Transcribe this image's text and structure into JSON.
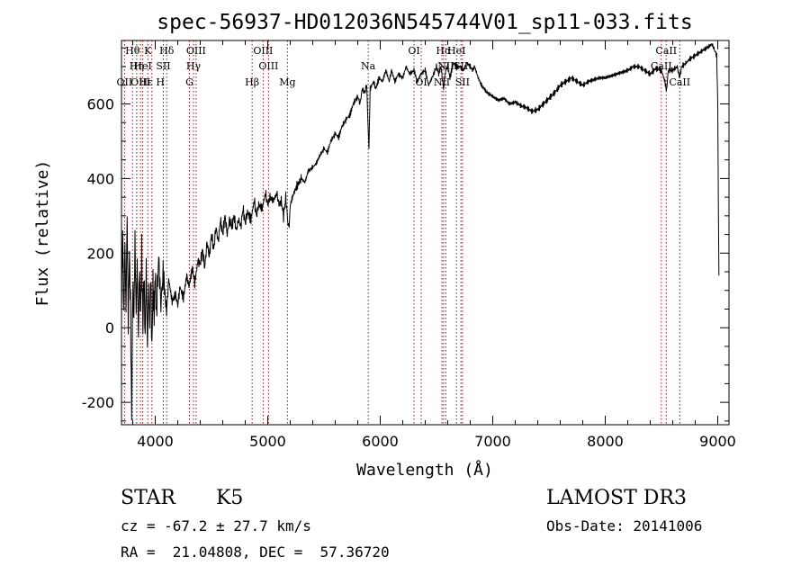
{
  "chart_data": {
    "type": "line",
    "title": "spec-56937-HD012036N545744V01_sp11-033.fits",
    "xlabel": "Wavelength (Å)",
    "ylabel": "Flux (relative)",
    "xlim": [
      3700,
      9100
    ],
    "ylim": [
      -260,
      770
    ],
    "xticks": [
      4000,
      5000,
      6000,
      7000,
      8000,
      9000
    ],
    "yticks": [
      -200,
      0,
      200,
      400,
      600
    ],
    "grid": false,
    "legend": "none",
    "series": [
      {
        "points": [
          [
            3700,
            40
          ],
          [
            3710,
            260
          ],
          [
            3720,
            20
          ],
          [
            3730,
            230
          ],
          [
            3740,
            40
          ],
          [
            3750,
            300
          ],
          [
            3760,
            10
          ],
          [
            3770,
            200
          ],
          [
            3780,
            60
          ],
          [
            3790,
            -240
          ],
          [
            3800,
            120
          ],
          [
            3810,
            20
          ],
          [
            3820,
            240
          ],
          [
            3830,
            40
          ],
          [
            3840,
            180
          ],
          [
            3850,
            -20
          ],
          [
            3860,
            160
          ],
          [
            3870,
            30
          ],
          [
            3880,
            210
          ],
          [
            3890,
            0
          ],
          [
            3900,
            150
          ],
          [
            3910,
            -30
          ],
          [
            3920,
            170
          ],
          [
            3930,
            -50
          ],
          [
            3940,
            110
          ],
          [
            3950,
            10
          ],
          [
            3960,
            150
          ],
          [
            3970,
            -60
          ],
          [
            3980,
            120
          ],
          [
            3990,
            30
          ],
          [
            4000,
            150
          ],
          [
            4010,
            40
          ],
          [
            4030,
            190
          ],
          [
            4050,
            60
          ],
          [
            4070,
            150
          ],
          [
            4100,
            40
          ],
          [
            4120,
            130
          ],
          [
            4150,
            70
          ],
          [
            4180,
            90
          ],
          [
            4200,
            60
          ],
          [
            4220,
            110
          ],
          [
            4250,
            80
          ],
          [
            4280,
            140
          ],
          [
            4300,
            110
          ],
          [
            4330,
            160
          ],
          [
            4350,
            120
          ],
          [
            4380,
            180
          ],
          [
            4400,
            170
          ],
          [
            4420,
            210
          ],
          [
            4440,
            160
          ],
          [
            4460,
            230
          ],
          [
            4480,
            190
          ],
          [
            4500,
            250
          ],
          [
            4520,
            210
          ],
          [
            4540,
            270
          ],
          [
            4560,
            230
          ],
          [
            4580,
            290
          ],
          [
            4600,
            250
          ],
          [
            4620,
            300
          ],
          [
            4640,
            250
          ],
          [
            4660,
            290
          ],
          [
            4680,
            270
          ],
          [
            4700,
            300
          ],
          [
            4720,
            260
          ],
          [
            4740,
            290
          ],
          [
            4760,
            270
          ],
          [
            4780,
            320
          ],
          [
            4800,
            280
          ],
          [
            4820,
            310
          ],
          [
            4850,
            290
          ],
          [
            4880,
            340
          ],
          [
            4900,
            300
          ],
          [
            4920,
            330
          ],
          [
            4950,
            320
          ],
          [
            4980,
            360
          ],
          [
            5000,
            330
          ],
          [
            5020,
            350
          ],
          [
            5050,
            340
          ],
          [
            5080,
            360
          ],
          [
            5100,
            330
          ],
          [
            5120,
            340
          ],
          [
            5140,
            300
          ],
          [
            5160,
            350
          ],
          [
            5180,
            280
          ],
          [
            5190,
            270
          ],
          [
            5200,
            330
          ],
          [
            5230,
            360
          ],
          [
            5260,
            380
          ],
          [
            5300,
            400
          ],
          [
            5330,
            390
          ],
          [
            5360,
            420
          ],
          [
            5400,
            430
          ],
          [
            5430,
            440
          ],
          [
            5460,
            460
          ],
          [
            5500,
            480
          ],
          [
            5530,
            470
          ],
          [
            5560,
            500
          ],
          [
            5600,
            520
          ],
          [
            5630,
            510
          ],
          [
            5660,
            540
          ],
          [
            5700,
            560
          ],
          [
            5730,
            570
          ],
          [
            5760,
            600
          ],
          [
            5780,
            610
          ],
          [
            5800,
            620
          ],
          [
            5820,
            600
          ],
          [
            5840,
            640
          ],
          [
            5860,
            630
          ],
          [
            5880,
            650
          ],
          [
            5895,
            510
          ],
          [
            5900,
            480
          ],
          [
            5910,
            640
          ],
          [
            5940,
            660
          ],
          [
            5960,
            640
          ],
          [
            5990,
            670
          ],
          [
            6020,
            660
          ],
          [
            6050,
            690
          ],
          [
            6080,
            660
          ],
          [
            6100,
            690
          ],
          [
            6130,
            660
          ],
          [
            6160,
            680
          ],
          [
            6200,
            670
          ],
          [
            6230,
            700
          ],
          [
            6260,
            680
          ],
          [
            6300,
            690
          ],
          [
            6330,
            660
          ],
          [
            6360,
            680
          ],
          [
            6400,
            690
          ],
          [
            6430,
            650
          ],
          [
            6460,
            670
          ],
          [
            6500,
            700
          ],
          [
            6520,
            680
          ],
          [
            6540,
            700
          ],
          [
            6563,
            640
          ],
          [
            6580,
            690
          ],
          [
            6600,
            700
          ],
          [
            6620,
            670
          ],
          [
            6650,
            710
          ],
          [
            6680,
            700
          ],
          [
            6710,
            700
          ],
          [
            6740,
            690
          ],
          [
            6770,
            710
          ],
          [
            6800,
            700
          ],
          [
            6820,
            690
          ],
          [
            6840,
            700
          ],
          [
            6870,
            670
          ],
          [
            6900,
            650
          ],
          [
            6950,
            630
          ],
          [
            7000,
            620
          ],
          [
            7050,
            610
          ],
          [
            7100,
            615
          ],
          [
            7150,
            600
          ],
          [
            7200,
            605
          ],
          [
            7250,
            595
          ],
          [
            7300,
            590
          ],
          [
            7350,
            580
          ],
          [
            7400,
            585
          ],
          [
            7450,
            600
          ],
          [
            7500,
            615
          ],
          [
            7550,
            630
          ],
          [
            7600,
            650
          ],
          [
            7650,
            660
          ],
          [
            7700,
            670
          ],
          [
            7750,
            660
          ],
          [
            7800,
            650
          ],
          [
            7850,
            660
          ],
          [
            7900,
            665
          ],
          [
            7950,
            670
          ],
          [
            8000,
            670
          ],
          [
            8050,
            675
          ],
          [
            8100,
            680
          ],
          [
            8150,
            685
          ],
          [
            8200,
            690
          ],
          [
            8250,
            700
          ],
          [
            8300,
            700
          ],
          [
            8350,
            690
          ],
          [
            8400,
            680
          ],
          [
            8450,
            695
          ],
          [
            8500,
            690
          ],
          [
            8530,
            660
          ],
          [
            8545,
            635
          ],
          [
            8560,
            690
          ],
          [
            8600,
            690
          ],
          [
            8640,
            700
          ],
          [
            8660,
            670
          ],
          [
            8680,
            700
          ],
          [
            8720,
            710
          ],
          [
            8750,
            720
          ],
          [
            8800,
            730
          ],
          [
            8850,
            740
          ],
          [
            8900,
            750
          ],
          [
            8950,
            760
          ],
          [
            8990,
            730
          ],
          [
            9000,
            600
          ],
          [
            9010,
            140
          ]
        ]
      }
    ],
    "lines": [
      {
        "x": 3727,
        "labels": [
          "OII"
        ],
        "row": 3
      },
      {
        "x": 3798,
        "labels": [
          "Hθ"
        ],
        "row": 1
      },
      {
        "x": 3835,
        "labels": [
          "Hη"
        ],
        "row": 2
      },
      {
        "x": 3869,
        "labels": [
          "OIII"
        ],
        "row": 3
      },
      {
        "x": 3889,
        "labels": [
          "HeI"
        ],
        "row": 2
      },
      {
        "x": 3934,
        "labels": [
          "K"
        ],
        "row": 1
      },
      {
        "x": 3970,
        "labels": [
          "Hε",
          "H"
        ],
        "row": 3
      },
      {
        "x": 4072,
        "labels": [
          "SII"
        ],
        "row": 2
      },
      {
        "x": 4102,
        "labels": [
          "Hδ"
        ],
        "row": 1
      },
      {
        "x": 4304,
        "labels": [
          "G"
        ],
        "row": 3
      },
      {
        "x": 4340,
        "labels": [
          "Hγ"
        ],
        "row": 2
      },
      {
        "x": 4363,
        "labels": [
          "OIII"
        ],
        "row": 1
      },
      {
        "x": 4861,
        "labels": [
          "Hβ"
        ],
        "row": 3
      },
      {
        "x": 4959,
        "labels": [
          "OIII"
        ],
        "row": 1
      },
      {
        "x": 5007,
        "labels": [
          "OIII"
        ],
        "row": 2
      },
      {
        "x": 5175,
        "labels": [
          "Mg"
        ],
        "row": 3
      },
      {
        "x": 5893,
        "labels": [
          "Na"
        ],
        "row": 2
      },
      {
        "x": 6300,
        "labels": [
          "OI"
        ],
        "row": 1
      },
      {
        "x": 6364,
        "labels": [
          "OI"
        ],
        "row": 3
      },
      {
        "x": 6548,
        "labels": [
          "NII"
        ],
        "row": 3
      },
      {
        "x": 6563,
        "labels": [
          "Hα"
        ],
        "row": 1
      },
      {
        "x": 6583,
        "labels": [
          "NII"
        ],
        "row": 2
      },
      {
        "x": 6678,
        "labels": [
          "HeI"
        ],
        "row": 1
      },
      {
        "x": 6717,
        "labels": [
          "SII"
        ],
        "row": 2
      },
      {
        "x": 6731,
        "labels": [
          "SII"
        ],
        "row": 3
      },
      {
        "x": 8498,
        "labels": [
          "CaII"
        ],
        "row": 2
      },
      {
        "x": 8542,
        "labels": [
          "CaII"
        ],
        "row": 1
      },
      {
        "x": 8662,
        "labels": [
          "CaII"
        ],
        "row": 3
      }
    ]
  },
  "info": {
    "object_type": "STAR",
    "subclass": "K5",
    "survey": "LAMOST DR3",
    "cz": "cz = -67.2 ± 27.7 km/s",
    "obs_date": "Obs-Date: 20141006",
    "coords": "RA =  21.04808, DEC =  57.36720"
  }
}
